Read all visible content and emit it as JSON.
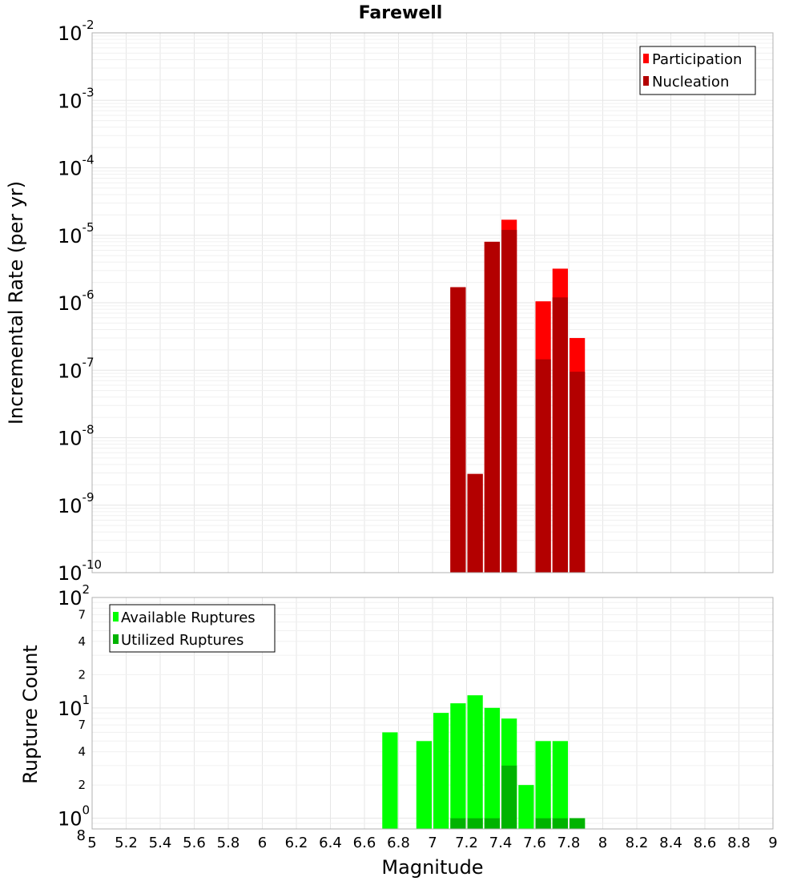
{
  "chart_data": [
    {
      "type": "bar",
      "title": "Farewell",
      "ylabel": "Incremental Rate (per yr)",
      "xlabel": "",
      "x_scale": "linear",
      "y_scale": "log",
      "xlim": [
        5,
        9
      ],
      "ylim": [
        1e-10,
        0.01
      ],
      "grid": true,
      "legend_position": "top-right",
      "bar_width": 0.1,
      "y_ticks": [
        {
          "base": "10",
          "exp": "-2"
        },
        {
          "base": "10",
          "exp": "-3"
        },
        {
          "base": "10",
          "exp": "-4"
        },
        {
          "base": "10",
          "exp": "-5"
        },
        {
          "base": "10",
          "exp": "-6"
        },
        {
          "base": "10",
          "exp": "-7"
        },
        {
          "base": "10",
          "exp": "-8"
        },
        {
          "base": "10",
          "exp": "-9"
        },
        {
          "base": "10",
          "exp": "-10"
        }
      ],
      "series": [
        {
          "name": "Participation",
          "color": "#ff0000",
          "x": [
            7.15,
            7.25,
            7.35,
            7.45,
            7.65,
            7.75,
            7.85
          ],
          "values": [
            1.7e-06,
            2.9e-09,
            8e-06,
            1.7e-05,
            1.05e-06,
            3.2e-06,
            3e-07
          ]
        },
        {
          "name": "Nucleation",
          "color": "#b30000",
          "x": [
            7.15,
            7.25,
            7.35,
            7.45,
            7.65,
            7.75,
            7.85
          ],
          "values": [
            1.7e-06,
            2.9e-09,
            8e-06,
            1.2e-05,
            1.45e-07,
            1.2e-06,
            9.5e-08
          ]
        }
      ]
    },
    {
      "type": "bar",
      "title": "",
      "ylabel": "Rupture Count",
      "xlabel": "Magnitude",
      "x_scale": "linear",
      "y_scale": "log",
      "xlim": [
        5,
        9
      ],
      "ylim": [
        0.8,
        100
      ],
      "grid": true,
      "legend_position": "top-left",
      "bar_width": 0.1,
      "x_ticks": [
        "5",
        "5.2",
        "5.4",
        "5.6",
        "5.8",
        "6",
        "6.2",
        "6.4",
        "6.6",
        "6.8",
        "7",
        "7.2",
        "7.4",
        "7.6",
        "7.8",
        "8",
        "8.2",
        "8.4",
        "8.6",
        "8.8",
        "9"
      ],
      "y_major_ticks": [
        {
          "value": 100,
          "base": "10",
          "exp": "2"
        },
        {
          "value": 10,
          "base": "10",
          "exp": "1"
        },
        {
          "value": 1,
          "base": "10",
          "exp": "0"
        }
      ],
      "y_minor_ticks": [
        {
          "value": 70,
          "label": "7"
        },
        {
          "value": 40,
          "label": "4"
        },
        {
          "value": 20,
          "label": "2"
        },
        {
          "value": 7,
          "label": "7"
        },
        {
          "value": 4,
          "label": "4"
        },
        {
          "value": 2,
          "label": "2"
        },
        {
          "value": 0.8,
          "label": "8"
        }
      ],
      "series": [
        {
          "name": "Available Ruptures",
          "color": "#00ff00",
          "x": [
            6.75,
            6.95,
            7.05,
            7.15,
            7.25,
            7.35,
            7.45,
            7.55,
            7.65,
            7.75,
            7.85
          ],
          "values": [
            6,
            5,
            9,
            11,
            13,
            10,
            8,
            2,
            5,
            5,
            1
          ]
        },
        {
          "name": "Utilized Ruptures",
          "color": "#00b300",
          "x": [
            7.15,
            7.25,
            7.35,
            7.45,
            7.65,
            7.75,
            7.85
          ],
          "values": [
            1,
            1,
            1,
            3,
            1,
            1,
            1
          ]
        }
      ]
    }
  ]
}
